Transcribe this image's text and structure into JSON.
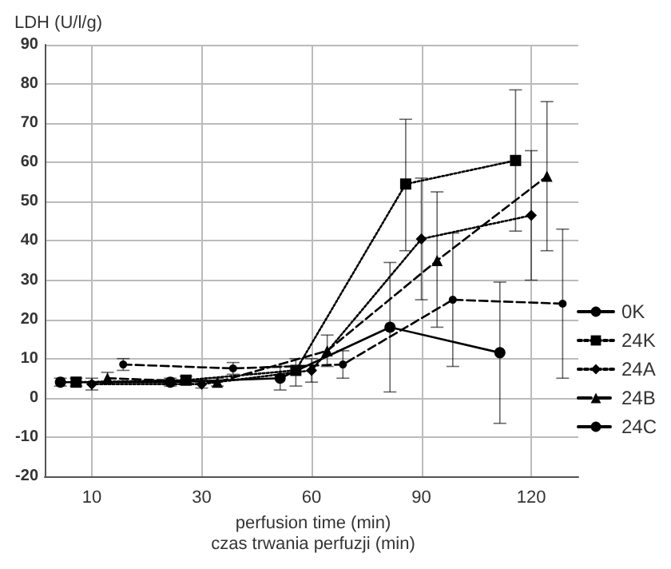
{
  "chart_data": {
    "type": "line",
    "ylabel": "LDH (U/l/g)",
    "xlabel": "perfusion time (min)\nczas trwania perfuzji (min)",
    "categories": [
      null,
      null,
      null,
      "10",
      null,
      null,
      null,
      null,
      null,
      null,
      "30",
      null,
      null,
      null,
      null,
      null,
      null,
      "60",
      null,
      null,
      null,
      null,
      null,
      null,
      "90",
      null,
      null,
      null,
      null,
      null,
      null,
      "120",
      null,
      null,
      null
    ],
    "ylim": [
      -20,
      90
    ],
    "yticks": [
      -20,
      -10,
      0,
      10,
      20,
      30,
      40,
      50,
      60,
      70,
      80,
      90
    ],
    "grid": true,
    "legend": "bottom right",
    "series": [
      {
        "name": "0K",
        "color": "#000000",
        "marker": "circle",
        "line_style": "solid",
        "values": [
          null,
          4,
          null,
          null,
          null,
          null,
          null,
          null,
          4,
          null,
          null,
          null,
          null,
          null,
          null,
          5,
          null,
          null,
          null,
          null,
          null,
          null,
          18,
          null,
          null,
          null,
          null,
          null,
          null,
          11.5,
          null,
          null,
          null,
          null,
          null
        ],
        "errors": [
          null,
          1,
          null,
          null,
          null,
          null,
          null,
          null,
          1,
          null,
          null,
          null,
          null,
          null,
          null,
          3,
          null,
          null,
          null,
          null,
          null,
          null,
          16.5,
          null,
          null,
          null,
          null,
          null,
          null,
          18,
          null,
          null,
          null,
          null,
          null
        ]
      },
      {
        "name": "24K",
        "color": "#000000",
        "marker": "square",
        "line_style": "dotted",
        "values": [
          null,
          null,
          4,
          null,
          null,
          null,
          null,
          null,
          null,
          4.5,
          null,
          null,
          null,
          null,
          null,
          null,
          7,
          null,
          null,
          null,
          null,
          null,
          null,
          54.5,
          null,
          null,
          null,
          null,
          null,
          null,
          60.5,
          null,
          null,
          null,
          null
        ],
        "errors": [
          null,
          null,
          1,
          null,
          null,
          null,
          null,
          null,
          null,
          1,
          null,
          null,
          null,
          null,
          null,
          null,
          [
            3,
            10
          ],
          null,
          null,
          null,
          null,
          null,
          null,
          [
            37.5,
            71
          ],
          null,
          null,
          null,
          null,
          null,
          null,
          [
            42.5,
            78.5
          ],
          null,
          null,
          null,
          null
        ]
      },
      {
        "name": "24A",
        "color": "#000000",
        "marker": "diamond",
        "line_style": "dotted",
        "values": [
          null,
          null,
          null,
          3.5,
          null,
          null,
          null,
          null,
          null,
          null,
          3.5,
          null,
          null,
          null,
          null,
          null,
          null,
          7,
          null,
          null,
          null,
          null,
          null,
          null,
          40.5,
          null,
          null,
          null,
          null,
          null,
          null,
          46.5,
          null,
          null,
          null
        ],
        "errors": [
          null,
          null,
          null,
          1.5,
          null,
          null,
          null,
          null,
          null,
          null,
          1,
          null,
          null,
          null,
          null,
          null,
          null,
          3,
          null,
          null,
          null,
          null,
          null,
          null,
          15.5,
          null,
          null,
          null,
          null,
          null,
          null,
          [
            30,
            63
          ],
          null,
          null,
          null
        ]
      },
      {
        "name": "24B",
        "color": "#000000",
        "marker": "triangle",
        "line_style": "dashed",
        "values": [
          null,
          null,
          null,
          null,
          5,
          null,
          null,
          null,
          null,
          null,
          null,
          4,
          null,
          null,
          null,
          null,
          null,
          null,
          12,
          null,
          null,
          null,
          null,
          null,
          null,
          35,
          null,
          null,
          null,
          null,
          null,
          null,
          56.5,
          null,
          null
        ],
        "errors": [
          null,
          null,
          null,
          null,
          1.5,
          null,
          null,
          null,
          null,
          null,
          null,
          1,
          null,
          null,
          null,
          null,
          null,
          null,
          4,
          null,
          null,
          null,
          null,
          null,
          null,
          [
            18,
            52.5
          ],
          null,
          null,
          null,
          null,
          null,
          null,
          [
            37.5,
            75.5
          ],
          null,
          null
        ]
      },
      {
        "name": "24C",
        "color": "#000000",
        "marker": "circle",
        "line_style": "dashed",
        "values": [
          null,
          null,
          null,
          null,
          null,
          8.5,
          null,
          null,
          null,
          null,
          null,
          null,
          7.5,
          null,
          null,
          null,
          null,
          null,
          null,
          8.5,
          null,
          null,
          null,
          null,
          null,
          null,
          25,
          null,
          null,
          null,
          null,
          null,
          null,
          24,
          null
        ],
        "errors": [
          null,
          null,
          null,
          null,
          null,
          1.5,
          null,
          null,
          null,
          null,
          null,
          null,
          1.5,
          null,
          null,
          null,
          null,
          null,
          null,
          3.5,
          null,
          null,
          null,
          null,
          null,
          null,
          17,
          null,
          null,
          null,
          null,
          null,
          null,
          19,
          null
        ]
      }
    ]
  }
}
